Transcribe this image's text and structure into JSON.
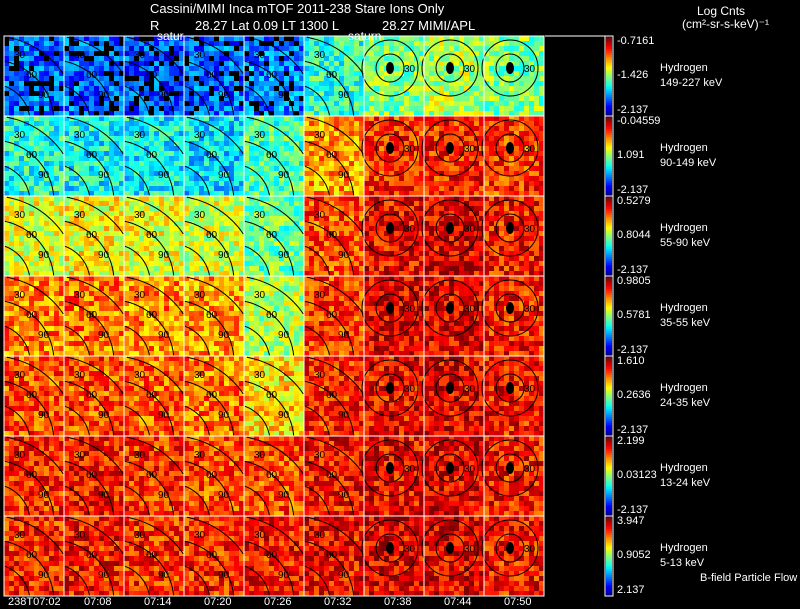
{
  "header": {
    "line1": "Cassini/MIMI Inca mTOF  2011-238   Stare   Ions Only",
    "line2_r": "R",
    "line2_mid": "28.27 Lat 0.09 LT 1300 L",
    "line2_l": "28.27  MIMI/APL",
    "units_line1": "Log Cnts",
    "units_line2": "(cm²-sr-s-keV)⁻¹",
    "saturn_label_1": "satur",
    "saturn_label_2": "saturn"
  },
  "footer": {
    "legend": "B-field Particle Flow"
  },
  "chart_data": {
    "type": "heatmap",
    "title": "Cassini/MIMI Inca mTOF 2011-238 Stare Ions Only",
    "times": [
      "238T07:02",
      "07:08",
      "07:14",
      "07:20",
      "07:26",
      "07:32",
      "07:38",
      "07:44",
      "07:50"
    ],
    "contour_labels": [
      "30",
      "60",
      "90"
    ],
    "colormap": "jet",
    "rows": [
      {
        "species": "Hydrogen",
        "energy": "149-227 keV",
        "cmax": "-0.7161",
        "cmid": "-1.426",
        "cmin": "-2.137",
        "relative_level": [
          0.22,
          0.22,
          0.2,
          0.22,
          0.25,
          0.42,
          0.5,
          0.55,
          0.5
        ]
      },
      {
        "species": "Hydrogen",
        "energy": "90-149 keV",
        "cmax": "-0.04559",
        "cmid": "1.091",
        "cmin": "-2.137",
        "relative_level": [
          0.4,
          0.38,
          0.37,
          0.35,
          0.45,
          0.72,
          0.83,
          0.85,
          0.82
        ]
      },
      {
        "species": "Hydrogen",
        "energy": "55-90 keV",
        "cmax": "0.5279",
        "cmid": "0.8044",
        "cmin": "-2.137",
        "relative_level": [
          0.6,
          0.62,
          0.6,
          0.58,
          0.48,
          0.8,
          0.88,
          0.9,
          0.86
        ]
      },
      {
        "species": "Hydrogen",
        "energy": "35-55 keV",
        "cmax": "0.9805",
        "cmid": "0.5781",
        "cmin": "-2.137",
        "relative_level": [
          0.75,
          0.76,
          0.74,
          0.72,
          0.55,
          0.82,
          0.9,
          0.9,
          0.85
        ]
      },
      {
        "species": "Hydrogen",
        "energy": "24-35 keV",
        "cmax": "1.610",
        "cmid": "0.2636",
        "cmin": "-2.137",
        "relative_level": [
          0.8,
          0.8,
          0.78,
          0.76,
          0.66,
          0.84,
          0.88,
          0.9,
          0.86
        ]
      },
      {
        "species": "Hydrogen",
        "energy": "13-24 keV",
        "cmax": "2.199",
        "cmid": "0.03123",
        "cmin": "-2.137",
        "relative_level": [
          0.84,
          0.86,
          0.83,
          0.8,
          0.8,
          0.86,
          0.88,
          0.9,
          0.86
        ]
      },
      {
        "species": "Hydrogen",
        "energy": "5-13 keV",
        "cmax": "3.947",
        "cmid": "0.9052",
        "cmin": "2.137",
        "relative_level": [
          0.84,
          0.86,
          0.84,
          0.84,
          0.86,
          0.88,
          0.9,
          0.9,
          0.86
        ]
      }
    ]
  }
}
